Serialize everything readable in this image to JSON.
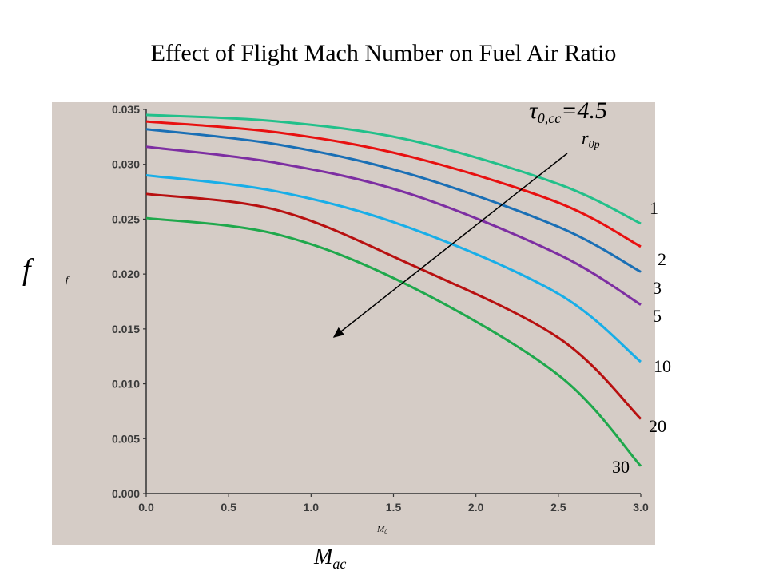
{
  "title": "Effect of Flight Mach Number on Fuel Air Ratio",
  "parameter_label": {
    "symbol": "τ",
    "subscript": "0,cc",
    "value": "=4.5"
  },
  "arrow_label": {
    "base": "r",
    "subscript": "0p"
  },
  "axis_symbols": {
    "x_base": "M",
    "x_sub": "ac",
    "y": "f",
    "photo_x": "M",
    "photo_x_sub": "0",
    "photo_y": "f"
  },
  "colors": {
    "photo_bg": "#d5ccc6",
    "axis": "#333333"
  },
  "chart_data": {
    "type": "line",
    "xlim": [
      0,
      3.0
    ],
    "ylim": [
      0,
      0.035
    ],
    "x_ticks": [
      "0.0",
      "0.5",
      "1.0",
      "1.5",
      "2.0",
      "2.5",
      "3.0"
    ],
    "y_ticks": [
      "0.000",
      "0.005",
      "0.010",
      "0.015",
      "0.020",
      "0.025",
      "0.030",
      "0.035"
    ],
    "x": [
      0,
      0.8,
      1.6,
      2.5,
      3.0
    ],
    "series": [
      {
        "name": "1",
        "color": "#22c08a",
        "values": [
          0.0345,
          0.0339,
          0.0322,
          0.0282,
          0.0246
        ]
      },
      {
        "name": "2",
        "color": "#e81010",
        "values": [
          0.0339,
          0.0329,
          0.0307,
          0.0265,
          0.0225
        ]
      },
      {
        "name": "3",
        "color": "#1a6fb5",
        "values": [
          0.0332,
          0.0318,
          0.0291,
          0.0243,
          0.0202
        ]
      },
      {
        "name": "5",
        "color": "#7d2ea2",
        "values": [
          0.0316,
          0.0301,
          0.0273,
          0.0218,
          0.0172
        ]
      },
      {
        "name": "10",
        "color": "#18aee8",
        "values": [
          0.029,
          0.0275,
          0.0242,
          0.0182,
          0.012
        ]
      },
      {
        "name": "20",
        "color": "#b81010",
        "values": [
          0.0273,
          0.0258,
          0.0209,
          0.0142,
          0.0068
        ]
      },
      {
        "name": "30",
        "color": "#1fa84c",
        "values": [
          0.0251,
          0.0236,
          0.0189,
          0.0108,
          0.0025
        ]
      }
    ]
  }
}
